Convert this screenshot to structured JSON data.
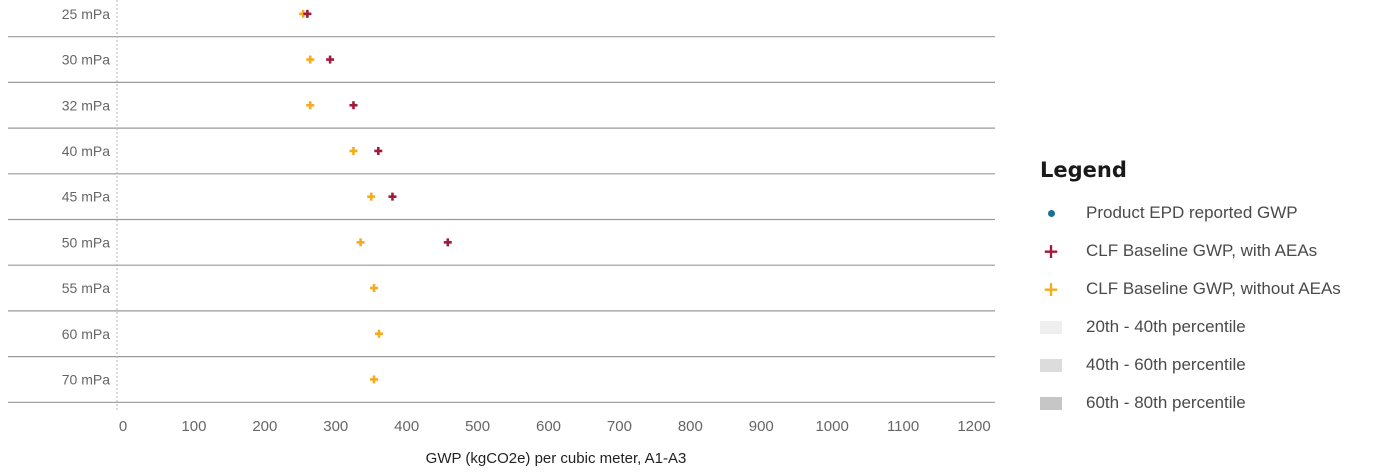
{
  "chart_data": {
    "type": "scatter",
    "orientation": "horizontal",
    "categories": [
      "25 mPa",
      "30 mPa",
      "32 mPa",
      "40 mPa",
      "45 mPa",
      "50 mPa",
      "55 mPa",
      "60 mPa",
      "70 mPa"
    ],
    "series": [
      {
        "name": "CLF Baseline GWP, with AEAs",
        "marker": "cross",
        "color": "#a01a3c",
        "values": [
          260,
          292,
          325,
          360,
          380,
          458,
          null,
          null,
          null
        ]
      },
      {
        "name": "CLF Baseline GWP, without AEAs",
        "marker": "cross",
        "color": "#f5ab1c",
        "values": [
          254,
          264,
          264,
          325,
          350,
          335,
          354,
          361,
          354
        ]
      }
    ],
    "xlabel": "GWP (kgCO2e) per cubic meter, A1-A3",
    "xlim": [
      0,
      1200
    ],
    "xticks": [
      0,
      100,
      200,
      300,
      400,
      500,
      600,
      700,
      800,
      900,
      1000,
      1100,
      1200
    ],
    "grid": "horizontal row separators",
    "legend_position": "right"
  },
  "legend": {
    "title": "Legend",
    "items": [
      {
        "label": "Product EPD reported GWP",
        "kind": "dot",
        "color": "#1b6e94"
      },
      {
        "label": "CLF Baseline GWP, with AEAs",
        "kind": "cross",
        "color": "#a01a3c"
      },
      {
        "label": "CLF Baseline GWP, without AEAs",
        "kind": "cross",
        "color": "#f5ab1c"
      },
      {
        "label": "20th - 40th percentile",
        "kind": "box",
        "color": "#efefef"
      },
      {
        "label": "40th - 60th percentile",
        "kind": "box",
        "color": "#dcdcdc"
      },
      {
        "label": "60th - 80th percentile",
        "kind": "box",
        "color": "#c6c6c6"
      }
    ]
  },
  "colors": {
    "axis": "#888888",
    "row_line": "#9a9a9a",
    "tick_text": "#666666"
  }
}
